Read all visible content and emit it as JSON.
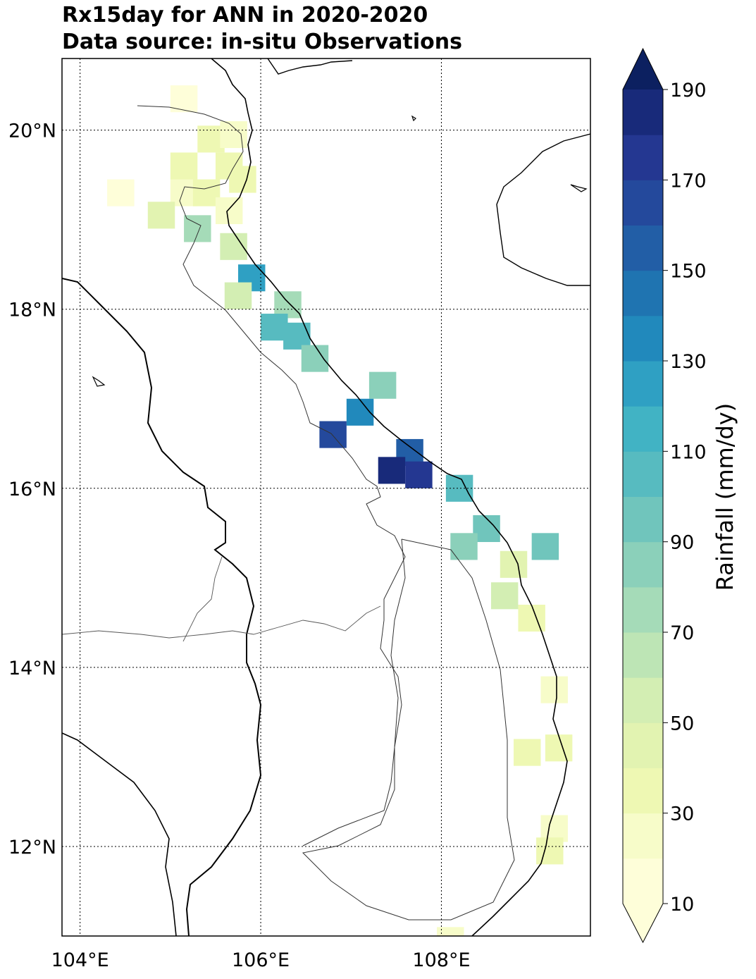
{
  "title": {
    "line1": "Rx15day for ANN in 2020-2020",
    "line2": "Data source: in-situ Observations"
  },
  "map": {
    "lon_range": [
      103.8,
      109.65
    ],
    "lat_range": [
      11.0,
      20.8
    ],
    "lon_ticks": [
      104,
      106,
      108
    ],
    "lat_ticks": [
      20,
      18,
      16,
      14,
      12
    ],
    "lon_tick_labels": [
      "104°E",
      "106°E",
      "108°E"
    ],
    "lat_tick_labels": [
      "20°N",
      "18°N",
      "16°N",
      "14°N",
      "12°N"
    ],
    "gridlines": "dotted"
  },
  "colorbar": {
    "label": "Rainfall (mm/dy)",
    "tick_labels": [
      "10",
      "30",
      "50",
      "70",
      "90",
      "110",
      "130",
      "150",
      "170",
      "190"
    ],
    "tick_values": [
      10,
      30,
      50,
      70,
      90,
      110,
      130,
      150,
      170,
      190
    ],
    "levels": [
      10,
      20,
      30,
      40,
      50,
      60,
      70,
      80,
      90,
      100,
      110,
      120,
      130,
      140,
      150,
      160,
      170,
      180,
      190
    ],
    "colors": [
      "#fefed9",
      "#f7fcc9",
      "#eef8b3",
      "#e2f3b1",
      "#d3eeb3",
      "#bde5b5",
      "#a5dbb8",
      "#8bd0ba",
      "#70c5bc",
      "#57bbc0",
      "#41b3c4",
      "#2fa0c3",
      "#2189bc",
      "#1f74b1",
      "#225ea6",
      "#24499c",
      "#243791",
      "#182a7a",
      "#0c2060"
    ],
    "extend": "both"
  },
  "chart_data": {
    "type": "heatmap",
    "title": "Rx15day for ANN in 2020-2020",
    "subtitle": "Data source: in-situ Observations",
    "value_label": "Rainfall (mm/dy)",
    "vmin": 10,
    "vmax": 190,
    "cells": [
      {
        "lon": 105.15,
        "lat": 20.35,
        "value": 15
      },
      {
        "lon": 105.45,
        "lat": 19.9,
        "value": 30
      },
      {
        "lon": 105.7,
        "lat": 19.95,
        "value": 25
      },
      {
        "lon": 105.15,
        "lat": 19.6,
        "value": 30
      },
      {
        "lon": 105.65,
        "lat": 19.6,
        "value": 30
      },
      {
        "lon": 105.8,
        "lat": 19.45,
        "value": 30
      },
      {
        "lon": 104.45,
        "lat": 19.3,
        "value": 15
      },
      {
        "lon": 105.15,
        "lat": 19.3,
        "value": 25
      },
      {
        "lon": 105.4,
        "lat": 19.3,
        "value": 30
      },
      {
        "lon": 105.65,
        "lat": 19.1,
        "value": 25
      },
      {
        "lon": 104.9,
        "lat": 19.05,
        "value": 45
      },
      {
        "lon": 105.3,
        "lat": 18.9,
        "value": 70
      },
      {
        "lon": 105.7,
        "lat": 18.7,
        "value": 55
      },
      {
        "lon": 105.9,
        "lat": 18.35,
        "value": 125
      },
      {
        "lon": 105.75,
        "lat": 18.15,
        "value": 50
      },
      {
        "lon": 106.3,
        "lat": 18.05,
        "value": 75
      },
      {
        "lon": 106.15,
        "lat": 17.8,
        "value": 105
      },
      {
        "lon": 106.4,
        "lat": 17.7,
        "value": 105
      },
      {
        "lon": 106.6,
        "lat": 17.45,
        "value": 85
      },
      {
        "lon": 107.35,
        "lat": 17.15,
        "value": 80
      },
      {
        "lon": 107.1,
        "lat": 16.85,
        "value": 135
      },
      {
        "lon": 106.8,
        "lat": 16.6,
        "value": 165
      },
      {
        "lon": 107.65,
        "lat": 16.4,
        "value": 155
      },
      {
        "lon": 107.45,
        "lat": 16.2,
        "value": 185
      },
      {
        "lon": 107.75,
        "lat": 16.15,
        "value": 175
      },
      {
        "lon": 108.2,
        "lat": 16.0,
        "value": 100
      },
      {
        "lon": 108.5,
        "lat": 15.55,
        "value": 95
      },
      {
        "lon": 108.25,
        "lat": 15.35,
        "value": 85
      },
      {
        "lon": 109.15,
        "lat": 15.35,
        "value": 90
      },
      {
        "lon": 108.8,
        "lat": 15.15,
        "value": 45
      },
      {
        "lon": 108.7,
        "lat": 14.8,
        "value": 55
      },
      {
        "lon": 109.0,
        "lat": 14.55,
        "value": 35
      },
      {
        "lon": 109.25,
        "lat": 13.75,
        "value": 25
      },
      {
        "lon": 108.95,
        "lat": 13.05,
        "value": 30
      },
      {
        "lon": 109.3,
        "lat": 13.1,
        "value": 30
      },
      {
        "lon": 109.25,
        "lat": 12.2,
        "value": 25
      },
      {
        "lon": 109.2,
        "lat": 11.95,
        "value": 30
      },
      {
        "lon": 108.1,
        "lat": 10.95,
        "value": 20
      }
    ]
  }
}
